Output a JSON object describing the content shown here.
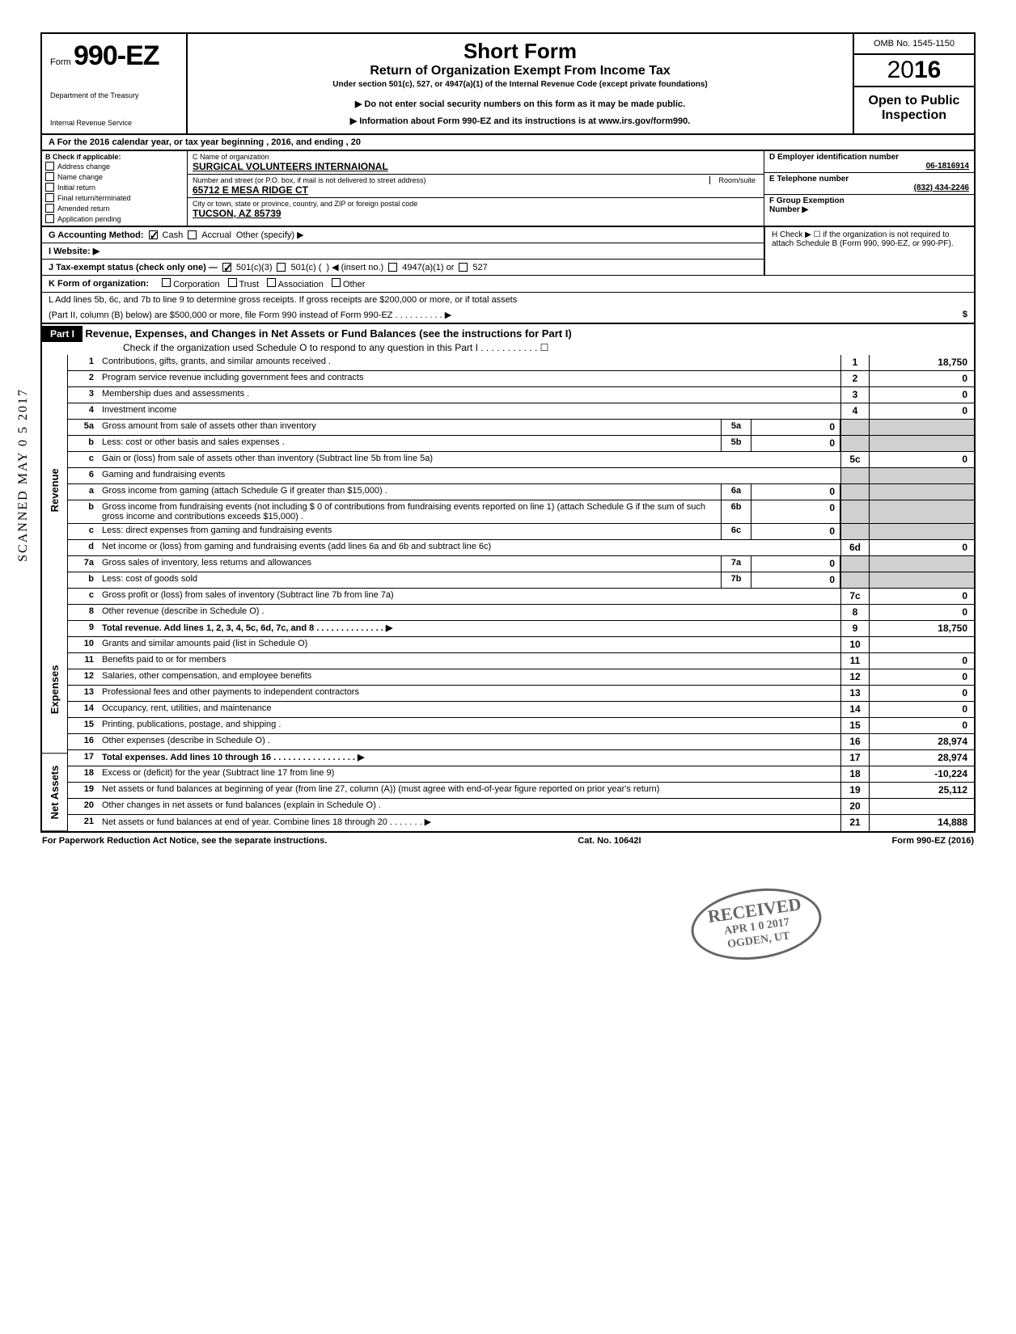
{
  "form": {
    "prefix": "Form",
    "number": "990-EZ",
    "dept1": "Department of the Treasury",
    "dept2": "Internal Revenue Service",
    "title_main": "Short Form",
    "title_sub": "Return of Organization Exempt From Income Tax",
    "title_under": "Under section 501(c), 527, or 4947(a)(1) of the Internal Revenue Code (except private foundations)",
    "title_note": "▶ Do not enter social security numbers on this form as it may be made public.",
    "title_info": "▶ Information about Form 990-EZ and its instructions is at www.irs.gov/form990.",
    "omb": "OMB No. 1545-1150",
    "year_prefix": "20",
    "year_bold": "16",
    "open_public": "Open to Public Inspection"
  },
  "section_a": {
    "year_line": "A For the 2016 calendar year, or tax year beginning                                                                          , 2016, and ending                                    , 20",
    "b_label": "B Check if applicable:",
    "checks": [
      "Address change",
      "Name change",
      "Initial return",
      "Final return/terminated",
      "Amended return",
      "Application pending"
    ],
    "c_label": "C Name of organization",
    "org_name": "SURGICAL VOLUNTEERS INTERNAIONAL",
    "addr_label": "Number and street (or P.O. box, if mail is not delivered to street address)",
    "room_suite": "Room/suite",
    "address": "65712 E MESA RIDGE CT",
    "city_label": "City or town, state or province, country, and ZIP or foreign postal code",
    "city": "TUCSON, AZ 85739",
    "d_label": "D Employer identification number",
    "ein": "06-1816914",
    "e_label": "E Telephone number",
    "phone": "(832) 434-2246",
    "f_label": "F Group Exemption",
    "f_label2": "Number ▶"
  },
  "g_line": {
    "label": "G Accounting Method:",
    "cash": "Cash",
    "accrual": "Accrual",
    "other": "Other (specify) ▶"
  },
  "h_line": "H  Check ▶ ☐ if the organization is not required to attach Schedule B (Form 990, 990-EZ, or 990-PF).",
  "i_line": "I  Website: ▶",
  "j_line": {
    "label": "J Tax-exempt status (check only one) —",
    "opt1": "501(c)(3)",
    "opt2": "501(c) (",
    "opt2b": ") ◀ (insert no.)",
    "opt3": "4947(a)(1) or",
    "opt4": "527"
  },
  "k_line": {
    "label": "K Form of organization:",
    "opts": [
      "Corporation",
      "Trust",
      "Association",
      "Other"
    ]
  },
  "l_line": {
    "text1": "L Add lines 5b, 6c, and 7b to line 9 to determine gross receipts. If gross receipts are $200,000 or more, or if total assets",
    "text2": "(Part II, column (B) below) are $500,000 or more, file Form 990 instead of Form 990-EZ .   .   .   .   .   .   .   .   .   .   ▶",
    "dollar": "$"
  },
  "part1": {
    "header": "Part I",
    "title": "Revenue, Expenses, and Changes in Net Assets or Fund Balances (see the instructions for Part I)",
    "check_line": "Check if the organization used Schedule O to respond to any question in this Part I .   .   .   .   .   .   .   .   .   .   .  ☐"
  },
  "vlabels": {
    "revenue": "Revenue",
    "expenses": "Expenses",
    "netassets": "Net Assets"
  },
  "lines": [
    {
      "n": "1",
      "d": "Contributions, gifts, grants, and similar amounts received .",
      "en": "1",
      "ev": "18,750"
    },
    {
      "n": "2",
      "d": "Program service revenue including government fees and contracts",
      "en": "2",
      "ev": "0"
    },
    {
      "n": "3",
      "d": "Membership dues and assessments .",
      "en": "3",
      "ev": "0"
    },
    {
      "n": "4",
      "d": "Investment income",
      "en": "4",
      "ev": "0"
    },
    {
      "n": "5a",
      "d": "Gross amount from sale of assets other than inventory",
      "mn": "5a",
      "mv": "0",
      "gray": true
    },
    {
      "n": "b",
      "d": "Less: cost or other basis and sales expenses .",
      "mn": "5b",
      "mv": "0",
      "gray": true
    },
    {
      "n": "c",
      "d": "Gain or (loss) from sale of assets other than inventory (Subtract line 5b from line 5a)",
      "en": "5c",
      "ev": "0"
    },
    {
      "n": "6",
      "d": "Gaming and fundraising events",
      "gray": true,
      "noval": true
    },
    {
      "n": "a",
      "d": "Gross income from gaming (attach Schedule G if greater than $15,000) .",
      "mn": "6a",
      "mv": "0",
      "gray": true
    },
    {
      "n": "b",
      "d": "Gross income from fundraising events (not including  $               0 of contributions from fundraising events reported on line 1) (attach Schedule G if the sum of such gross income and contributions exceeds $15,000) .",
      "mn": "6b",
      "mv": "0",
      "gray": true
    },
    {
      "n": "c",
      "d": "Less: direct expenses from gaming and fundraising events",
      "mn": "6c",
      "mv": "0",
      "gray": true
    },
    {
      "n": "d",
      "d": "Net income or (loss) from gaming and fundraising events (add lines 6a and 6b and subtract line 6c)",
      "en": "6d",
      "ev": "0"
    },
    {
      "n": "7a",
      "d": "Gross sales of inventory, less returns and allowances",
      "mn": "7a",
      "mv": "0",
      "gray": true
    },
    {
      "n": "b",
      "d": "Less: cost of goods sold",
      "mn": "7b",
      "mv": "0",
      "gray": true
    },
    {
      "n": "c",
      "d": "Gross profit or (loss) from sales of inventory (Subtract line 7b from line 7a)",
      "en": "7c",
      "ev": "0"
    },
    {
      "n": "8",
      "d": "Other revenue (describe in Schedule O) .",
      "en": "8",
      "ev": "0"
    },
    {
      "n": "9",
      "d": "Total revenue. Add lines 1, 2, 3, 4, 5c, 6d, 7c, and 8   .   .   .   .   .   .   .   .   .   .   .   .   .   .   ▶",
      "en": "9",
      "ev": "18,750",
      "bold": true
    },
    {
      "n": "10",
      "d": "Grants and similar amounts paid (list in Schedule O)",
      "en": "10",
      "ev": ""
    },
    {
      "n": "11",
      "d": "Benefits paid to or for members",
      "en": "11",
      "ev": "0"
    },
    {
      "n": "12",
      "d": "Salaries, other compensation, and employee benefits",
      "en": "12",
      "ev": "0"
    },
    {
      "n": "13",
      "d": "Professional fees and other payments to independent contractors",
      "en": "13",
      "ev": "0"
    },
    {
      "n": "14",
      "d": "Occupancy, rent, utilities, and maintenance",
      "en": "14",
      "ev": "0"
    },
    {
      "n": "15",
      "d": "Printing, publications, postage, and shipping .",
      "en": "15",
      "ev": "0"
    },
    {
      "n": "16",
      "d": "Other expenses (describe in Schedule O) .",
      "en": "16",
      "ev": "28,974"
    },
    {
      "n": "17",
      "d": "Total expenses. Add lines 10 through 16 .   .   .   .   .   .   .   .   .   .   .   .   .   .   .   .   .   ▶",
      "en": "17",
      "ev": "28,974",
      "bold": true
    },
    {
      "n": "18",
      "d": "Excess or (deficit) for the year (Subtract line 17 from line 9)",
      "en": "18",
      "ev": "-10,224"
    },
    {
      "n": "19",
      "d": "Net assets or fund balances at beginning of year (from line 27, column (A)) (must agree with end-of-year figure reported on prior year's return)",
      "en": "19",
      "ev": "25,112"
    },
    {
      "n": "20",
      "d": "Other changes in net assets or fund balances (explain in Schedule O) .",
      "en": "20",
      "ev": ""
    },
    {
      "n": "21",
      "d": "Net assets or fund balances at end of year. Combine lines 18 through 20   .   .   .   .   .   .   .   ▶",
      "en": "21",
      "ev": "14,888"
    }
  ],
  "footer": {
    "left": "For Paperwork Reduction Act Notice, see the separate instructions.",
    "mid": "Cat. No. 10642I",
    "right": "Form 990-EZ (2016)"
  },
  "stamp": {
    "scanned": "SCANNED MAY 0 5 2017",
    "received1": "RECEIVED",
    "received2": "APR 1 0 2017",
    "received3": "OGDEN, UT"
  }
}
